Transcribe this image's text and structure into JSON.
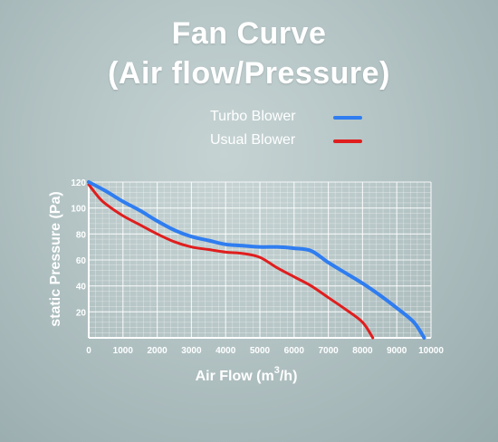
{
  "title_line1": "Fan Curve",
  "title_line2": "(Air flow/Pressure)",
  "legend": [
    {
      "label": "Turbo Blower",
      "color": "#2f7df0"
    },
    {
      "label": "Usual Blower",
      "color": "#e01e1e"
    }
  ],
  "chart_data": {
    "type": "line",
    "xlabel_main": "Air Flow (m",
    "xlabel_sup": "3",
    "xlabel_tail": "/h)",
    "ylabel": "static Pressure (Pa)",
    "xlim": [
      0,
      10000
    ],
    "ylim": [
      0,
      120
    ],
    "x_ticks": [
      0,
      1000,
      2000,
      3000,
      4000,
      5000,
      6000,
      7000,
      8000,
      9000,
      10000
    ],
    "y_ticks": [
      20,
      40,
      60,
      80,
      100,
      120
    ],
    "grid": true,
    "legend_position": "top",
    "series": [
      {
        "name": "Turbo Blower",
        "color": "#2f7df0",
        "points": [
          [
            0,
            120
          ],
          [
            500,
            113
          ],
          [
            1000,
            105
          ],
          [
            1500,
            98
          ],
          [
            2000,
            90
          ],
          [
            2500,
            83
          ],
          [
            3000,
            78
          ],
          [
            3500,
            75
          ],
          [
            4000,
            72
          ],
          [
            4500,
            71
          ],
          [
            5000,
            70
          ],
          [
            5500,
            70
          ],
          [
            6000,
            69
          ],
          [
            6500,
            67
          ],
          [
            7000,
            58
          ],
          [
            7500,
            50
          ],
          [
            8000,
            42
          ],
          [
            8500,
            33
          ],
          [
            9000,
            23
          ],
          [
            9500,
            12
          ],
          [
            9800,
            0
          ]
        ]
      },
      {
        "name": "Usual Blower",
        "color": "#e01e1e",
        "points": [
          [
            0,
            118
          ],
          [
            300,
            108
          ],
          [
            500,
            103
          ],
          [
            1000,
            94
          ],
          [
            1500,
            87
          ],
          [
            2000,
            80
          ],
          [
            2500,
            74
          ],
          [
            3000,
            70
          ],
          [
            3500,
            68
          ],
          [
            4000,
            66
          ],
          [
            4500,
            65
          ],
          [
            5000,
            62
          ],
          [
            5500,
            54
          ],
          [
            6000,
            47
          ],
          [
            6500,
            40
          ],
          [
            7000,
            31
          ],
          [
            7500,
            22
          ],
          [
            8000,
            12
          ],
          [
            8300,
            0
          ]
        ]
      }
    ]
  }
}
